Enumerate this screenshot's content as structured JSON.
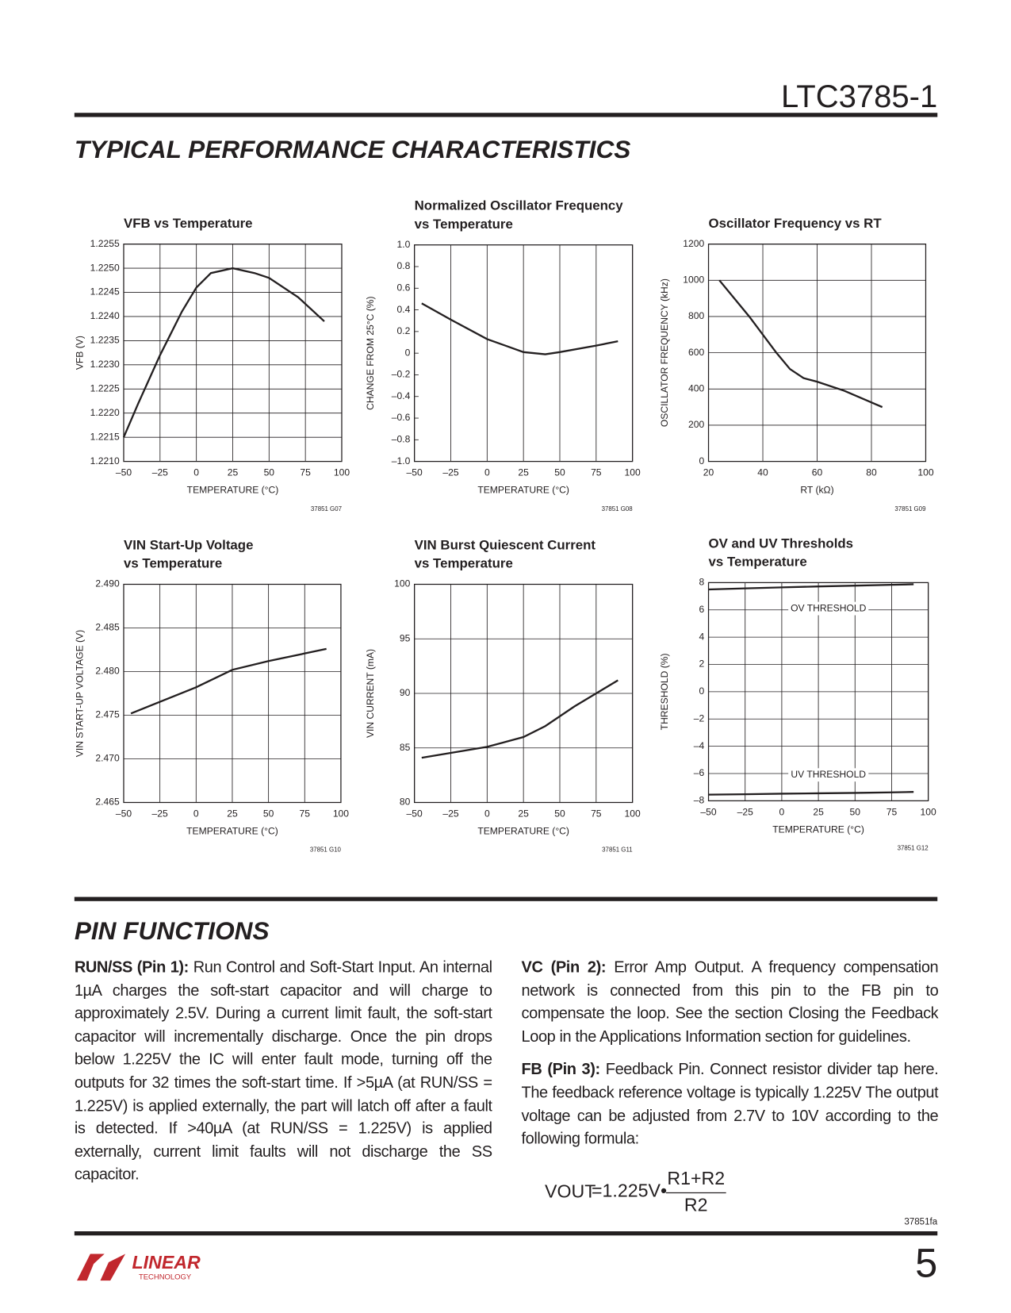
{
  "header": {
    "part": "LTC3785-1"
  },
  "section_title": "TYPICAL PERFORMANCE CHARACTERISTICS",
  "chart_data": [
    {
      "type": "line",
      "title": [
        "VFB vs Temperature"
      ],
      "x_label": "TEMPERATURE (°C)",
      "y_label": "VFB (V)",
      "code": "37851 G07",
      "color": "#231f20",
      "grid": "both",
      "xlim": [
        -50,
        100
      ],
      "xticks": [
        {
          "value": -50,
          "label": "–50"
        },
        {
          "value": -25,
          "label": "–25"
        },
        0,
        25,
        50,
        75,
        100
      ],
      "ylim": [
        1.221,
        1.2255
      ],
      "yticks": [
        {
          "value": 1.221,
          "label": "1.2210"
        },
        1.2215,
        {
          "value": 1.222,
          "label": "1.2220"
        },
        1.2225,
        {
          "value": 1.223,
          "label": "1.2230"
        },
        1.2235,
        {
          "value": 1.224,
          "label": "1.2240"
        },
        1.2245,
        {
          "value": 1.225,
          "label": "1.2250"
        },
        1.2255
      ],
      "x": [
        -50,
        -40,
        -25,
        -10,
        0,
        10,
        25,
        40,
        50,
        70,
        88
      ],
      "values": [
        1.2215,
        1.2222,
        1.2232,
        1.2241,
        1.2246,
        1.2249,
        1.225,
        1.2249,
        1.2248,
        1.2244,
        1.2239
      ]
    },
    {
      "type": "line",
      "title": [
        "Normalized Oscillator Frequency",
        "vs Temperature"
      ],
      "x_label": "TEMPERATURE (°C)",
      "y_label": "CHANGE FROM 25°C (%)",
      "code": "37851 G08",
      "color": "#231f20",
      "grid": "x",
      "xlim": [
        -50,
        100
      ],
      "xticks": [
        {
          "value": -50,
          "label": "–50"
        },
        {
          "value": -25,
          "label": "–25"
        },
        0,
        25,
        50,
        75,
        100
      ],
      "ylim": [
        -1,
        1
      ],
      "yticks": [
        {
          "value": -1,
          "label": "–1.0"
        },
        {
          "value": -0.8,
          "label": "–0.8"
        },
        {
          "value": -0.6,
          "label": "–0.6"
        },
        {
          "value": -0.4,
          "label": "–0.4"
        },
        {
          "value": -0.2,
          "label": "–0.2"
        },
        0,
        0.2,
        0.4,
        0.6,
        0.8,
        {
          "value": 1,
          "label": "1.0"
        }
      ],
      "x": [
        -45,
        -25,
        0,
        25,
        40,
        50,
        75,
        90
      ],
      "values": [
        0.46,
        0.31,
        0.13,
        0.01,
        -0.01,
        0.01,
        0.07,
        0.11
      ]
    },
    {
      "type": "line",
      "title": [
        "Oscillator Frequency vs RT"
      ],
      "x_label": "RT (kΩ)",
      "y_label": "OSCILLATOR FREQUENCY (kHz)",
      "code": "37851 G09",
      "color": "#231f20",
      "grid": "both",
      "xlim": [
        20,
        100
      ],
      "xticks": [
        20,
        40,
        60,
        80,
        100
      ],
      "ylim": [
        0,
        1200
      ],
      "yticks": [
        0,
        200,
        400,
        600,
        800,
        1000,
        1200
      ],
      "x": [
        24,
        35,
        45,
        50,
        55,
        60,
        70,
        84
      ],
      "values": [
        1000,
        800,
        600,
        510,
        460,
        440,
        390,
        300
      ]
    },
    {
      "type": "line",
      "title": [
        "VIN Start-Up Voltage",
        "vs Temperature"
      ],
      "x_label": "TEMPERATURE (°C)",
      "y_label": "VIN START-UP VOLTAGE (V)",
      "code": "37851 G10",
      "color": "#231f20",
      "grid": "both",
      "xlim": [
        -50,
        100
      ],
      "xticks": [
        {
          "value": -50,
          "label": "–50"
        },
        {
          "value": -25,
          "label": "–25"
        },
        0,
        25,
        50,
        75,
        100
      ],
      "ylim": [
        2.465,
        2.49
      ],
      "yticks": [
        2.465,
        {
          "value": 2.47,
          "label": "2.470"
        },
        2.475,
        {
          "value": 2.48,
          "label": "2.480"
        },
        2.485,
        {
          "value": 2.49,
          "label": "2.490"
        }
      ],
      "x": [
        -45,
        0,
        25,
        50,
        90
      ],
      "values": [
        2.4752,
        2.4782,
        2.4802,
        2.4812,
        2.4826
      ]
    },
    {
      "type": "line",
      "title": [
        "VIN Burst Quiescent Current",
        "vs Temperature"
      ],
      "x_label": "TEMPERATURE (°C)",
      "y_label": "VIN CURRENT (mA)",
      "code": "37851 G11",
      "color": "#231f20",
      "grid": "both",
      "xlim": [
        -50,
        100
      ],
      "xticks": [
        {
          "value": -50,
          "label": "–50"
        },
        {
          "value": -25,
          "label": "–25"
        },
        0,
        25,
        50,
        75,
        100
      ],
      "ylim": [
        80,
        100
      ],
      "yticks": [
        80,
        85,
        90,
        95,
        100
      ],
      "x": [
        -45,
        0,
        25,
        40,
        60,
        75,
        90
      ],
      "values": [
        84.1,
        85.1,
        86,
        87,
        88.8,
        90,
        91.2
      ]
    },
    {
      "type": "line",
      "title": [
        "OV and UV Thresholds",
        "vs Temperature"
      ],
      "x_label": "TEMPERATURE (°C)",
      "y_label": "THRESHOLD (%)",
      "code": "37851 G12",
      "grid": "both",
      "xlim": [
        -50,
        100
      ],
      "xticks": [
        {
          "value": -50,
          "label": "–50"
        },
        {
          "value": -25,
          "label": "–25"
        },
        0,
        25,
        50,
        75,
        100
      ],
      "ylim": [
        -8,
        8
      ],
      "yticks": [
        {
          "value": -8,
          "label": "–8"
        },
        {
          "value": -6,
          "label": "–6"
        },
        {
          "value": -4,
          "label": "–4"
        },
        {
          "value": -2,
          "label": "–2"
        },
        0,
        2,
        4,
        6,
        8
      ],
      "x": [
        -50,
        -25,
        0,
        25,
        50,
        75,
        90
      ],
      "series": [
        {
          "name": "OV THRESHOLD",
          "color": "#231f20",
          "values": [
            7.5,
            7.58,
            7.65,
            7.72,
            7.78,
            7.84,
            7.88
          ]
        },
        {
          "name": "UV THRESHOLD",
          "color": "#231f20",
          "values": [
            -7.55,
            -7.52,
            -7.48,
            -7.45,
            -7.42,
            -7.38,
            -7.35
          ]
        }
      ]
    }
  ],
  "pin_functions": {
    "title": "PIN FUNCTIONS",
    "left": [
      {
        "label": "RUN/SS (Pin 1):",
        "text": "Run Control and Soft-Start Input. An internal 1µA charges the soft-start capacitor and will charge to approximately 2.5V. During a current limit fault, the soft-start capacitor will incrementally discharge. Once the pin drops below 1.225V the IC will enter fault mode, turning off the outputs for 32 times the soft-start time. If >5µA (at RUN/SS = 1.225V) is applied externally, the part will latch off after a fault is detected. If >40µA (at RUN/SS = 1.225V) is applied externally, current limit faults will not discharge the SS capacitor."
      }
    ],
    "right": [
      {
        "label": "VC (Pin 2):",
        "text": "Error Amp Output. A frequency compensation network is connected from this pin to the FB pin to compensate the loop. See the section Closing the Feedback Loop in the Applications Information section for guidelines."
      },
      {
        "label": "FB (Pin 3):",
        "text": "Feedback Pin. Connect resistor divider tap here. The feedback reference voltage is typically 1.225V The output voltage can be adjusted from 2.7V to 10V according to the following formula:"
      }
    ],
    "formula": {
      "lhs": "VOUT",
      "rhs": "=1.225V•",
      "numerator": "R1+R2",
      "denominator": "R2"
    }
  },
  "footer": {
    "doc_code": "37851fa",
    "page": "5",
    "logo_name": "LINEAR",
    "logo_sub": "TECHNOLOGY"
  }
}
